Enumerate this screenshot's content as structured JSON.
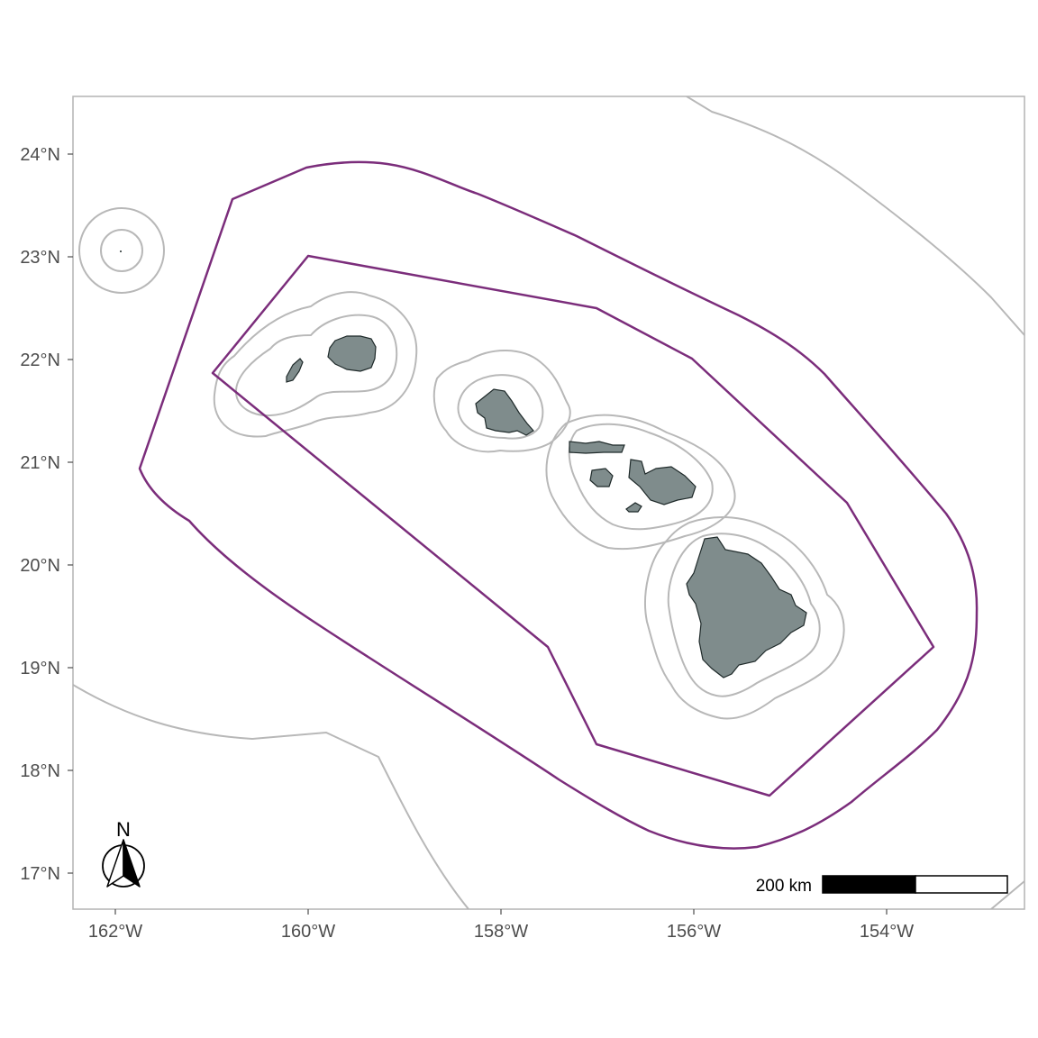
{
  "axes": {
    "x_ticks": [
      "162°W",
      "160°W",
      "158°W",
      "156°W",
      "154°W"
    ],
    "y_ticks": [
      "24°N",
      "23°N",
      "22°N",
      "21°N",
      "20°N",
      "19°N",
      "18°N",
      "17°N"
    ]
  },
  "north_arrow": {
    "label": "N"
  },
  "scale_bar": {
    "label": "200 km"
  },
  "colors": {
    "panel_border": "#b3b3b3",
    "boundary_line": "#7b2d7b",
    "buffer_line": "#b8b8b8",
    "land_fill": "#7f8c8c",
    "land_stroke": "#1f2a2a",
    "axis_text": "#4d4d4d"
  },
  "layers": [
    "islands",
    "island-buffers",
    "management-boundaries",
    "outer-contours"
  ]
}
